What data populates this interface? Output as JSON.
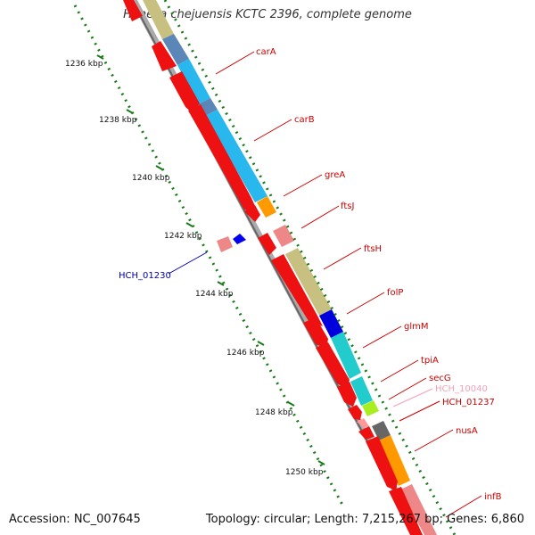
{
  "title": "Hahella chejuensis KCTC 2396, complete genome",
  "footer": {
    "accession": "Accession: NC_007645",
    "summary": "Topology: circular; Length: 7,215,267 bp; Genes: 6,860"
  },
  "ticks": [
    {
      "label": "1236 kbp"
    },
    {
      "label": "1238 kbp"
    },
    {
      "label": "1240 kbp"
    },
    {
      "label": "1242 kbp"
    },
    {
      "label": "1244 kbp"
    },
    {
      "label": "1246 kbp"
    },
    {
      "label": "1248 kbp"
    },
    {
      "label": "1250 kbp"
    }
  ],
  "gene_labels": [
    {
      "text": "carA",
      "color": "#cc0000"
    },
    {
      "text": "carB",
      "color": "#cc0000"
    },
    {
      "text": "greA",
      "color": "#cc0000"
    },
    {
      "text": "ftsJ",
      "color": "#cc0000"
    },
    {
      "text": "ftsH",
      "color": "#cc0000"
    },
    {
      "text": "folP",
      "color": "#cc0000"
    },
    {
      "text": "glmM",
      "color": "#cc0000"
    },
    {
      "text": "tpiA",
      "color": "#cc0000"
    },
    {
      "text": "secG",
      "color": "#cc0000"
    },
    {
      "text": "HCH_10040",
      "color": "#f4a0b8"
    },
    {
      "text": "HCH_01237",
      "color": "#cc0000"
    },
    {
      "text": "nusA",
      "color": "#cc0000"
    },
    {
      "text": "infB",
      "color": "#cc0000"
    },
    {
      "text": "HCH_01230",
      "color": "#0000aa"
    }
  ],
  "colors": {
    "gene_red": "#ee1111",
    "backbone": "#888888",
    "tick_green": "#1a7a1a"
  }
}
